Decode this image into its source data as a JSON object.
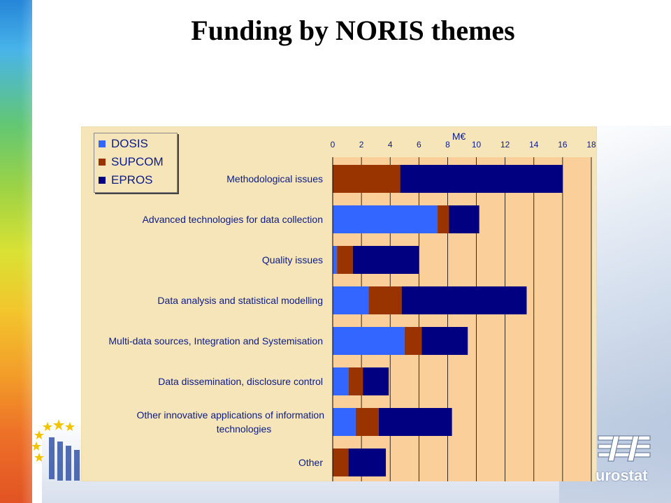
{
  "title": "Funding by NORIS themes",
  "chart_data": {
    "type": "bar",
    "orientation": "horizontal",
    "stacked": true,
    "unit_label": "M€",
    "xlim": [
      0,
      18
    ],
    "xticks": [
      0,
      2,
      4,
      6,
      8,
      10,
      12,
      14,
      16,
      18
    ],
    "grid": true,
    "legend_position": "top-left",
    "categories": [
      "Methodological issues",
      "Advanced technologies for data collection",
      "Quality issues",
      "Data analysis and statistical modelling",
      "Multi-data sources, Integration and Systemisation",
      "Data dissemination, disclosure control",
      "Other innovative applications of information technologies",
      "Other"
    ],
    "category_label_lines": [
      [
        "Methodological issues"
      ],
      [
        "Advanced technologies for data collection"
      ],
      [
        "Quality issues"
      ],
      [
        "Data analysis and statistical modelling"
      ],
      [
        "Multi-data sources, Integration and Systemisation"
      ],
      [
        "Data dissemination, disclosure control"
      ],
      [
        "Other innovative applications of information",
        "technologies"
      ],
      [
        "Other"
      ]
    ],
    "series": [
      {
        "name": "DOSIS",
        "color": "#3366ff",
        "values": [
          0.0,
          7.3,
          0.3,
          2.5,
          5.0,
          1.1,
          1.6,
          0.0
        ]
      },
      {
        "name": "SUPCOM",
        "color": "#993300",
        "values": [
          4.7,
          0.8,
          1.1,
          2.3,
          1.2,
          1.0,
          1.6,
          1.1
        ]
      },
      {
        "name": "EPROS",
        "color": "#000080",
        "values": [
          11.3,
          2.1,
          4.6,
          8.7,
          3.2,
          1.8,
          5.1,
          2.6
        ]
      }
    ],
    "colors": {
      "plot_bg": "#fbcf99",
      "panel_bg": "#f5e5b8",
      "grid": "#000000",
      "text": "#0a1b8c"
    }
  }
}
